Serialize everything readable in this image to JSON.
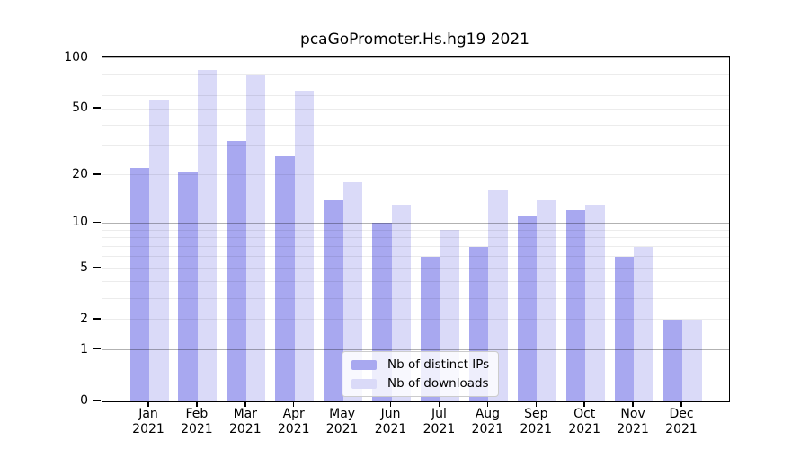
{
  "title": "pcaGoPromoter.Hs.hg19 2021",
  "chart_data": {
    "type": "bar",
    "title": "pcaGoPromoter.Hs.hg19 2021",
    "xlabel": "",
    "ylabel": "",
    "yscale": "log1p",
    "ylim": [
      0,
      102
    ],
    "grid": "on",
    "legend_position": "lower center inside plot",
    "categories": [
      "Jan 2021",
      "Feb 2021",
      "Mar 2021",
      "Apr 2021",
      "May 2021",
      "Jun 2021",
      "Jul 2021",
      "Aug 2021",
      "Sep 2021",
      "Oct 2021",
      "Nov 2021",
      "Dec 2021"
    ],
    "series": [
      {
        "name": "Nb of distinct IPs",
        "color": "#a8a8f0",
        "values": [
          22,
          21,
          32,
          26,
          14,
          10,
          6,
          7,
          11,
          12,
          6,
          2
        ]
      },
      {
        "name": "Nb of downloads",
        "color": "#dadaf8",
        "values": [
          57,
          85,
          80,
          64,
          18,
          13,
          9,
          16,
          14,
          13,
          7,
          2
        ]
      }
    ],
    "y_major_ticks": [
      0,
      1,
      2,
      5,
      10,
      20,
      50,
      100
    ],
    "y_major_gridlines": [
      1,
      10,
      100
    ],
    "y_minor_gridlines": [
      2,
      3,
      4,
      5,
      6,
      7,
      8,
      9,
      20,
      30,
      40,
      50,
      60,
      70,
      80,
      90
    ]
  },
  "legend": {
    "item1": "Nb of distinct IPs",
    "item2": "Nb of downloads"
  }
}
